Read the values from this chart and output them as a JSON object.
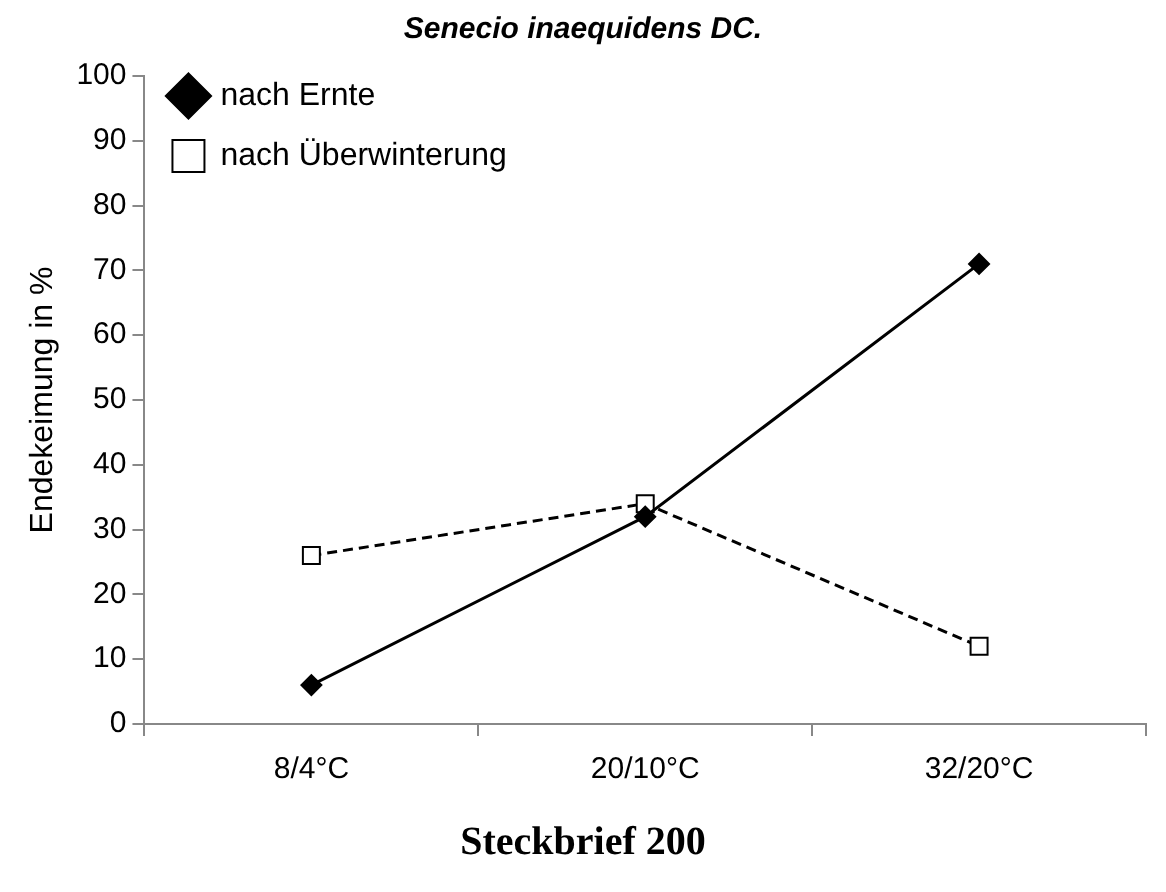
{
  "chart_data": {
    "type": "line",
    "title": "Senecio inaequidens DC.",
    "ylabel": "Endekeimung in %",
    "annotations": [
      "Steckbrief 200"
    ],
    "categories": [
      "8/4°C",
      "20/10°C",
      "32/20°C"
    ],
    "series": [
      {
        "name": "nach Ernte",
        "color": "#000000",
        "values": [
          6,
          32,
          71
        ],
        "marker": "diamond",
        "line_style": "solid"
      },
      {
        "name": "nach Überwinterung",
        "color": "#000000",
        "values": [
          26,
          34,
          12
        ],
        "marker": "square",
        "line_style": "dashed"
      }
    ],
    "ylim": [
      0,
      100
    ],
    "yticks": [
      0,
      10,
      20,
      30,
      40,
      50,
      60,
      70,
      80,
      90,
      100
    ],
    "grid": false,
    "legend": "top left"
  }
}
